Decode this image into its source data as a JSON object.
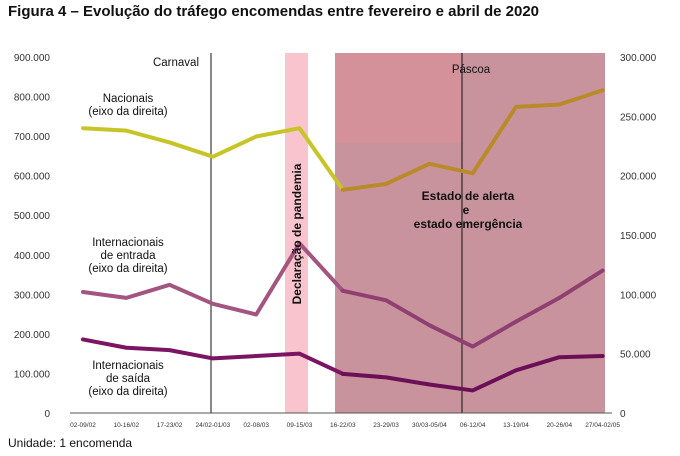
{
  "title": "Figura 4 – Evolução do tráfego encomendas entre fevereiro e abril de 2020",
  "footer": "Unidade: 1 encomenda",
  "chart_data": {
    "type": "line",
    "categories": [
      "02-09/02",
      "10-16/02",
      "17-23/02",
      "24/02-01/03",
      "02-08/03",
      "09-15/03",
      "16-22/03",
      "23-29/03",
      "30/03-05/04",
      "06-12/04",
      "13-19/04",
      "20-26/04",
      "27/04-02/05"
    ],
    "left_axis": {
      "ylim": [
        0,
        900000
      ],
      "ticks": [
        "0",
        "100.000",
        "200.000",
        "300.000",
        "400.000",
        "500.000",
        "600.000",
        "700.000",
        "800.000",
        "900.000"
      ]
    },
    "right_axis": {
      "ylim": [
        0,
        300000
      ],
      "ticks": [
        "0",
        "50.000",
        "100.000",
        "150.000",
        "200.000",
        "250.000",
        "300.000"
      ]
    },
    "series": [
      {
        "name": "Nacionais",
        "label_lines": [
          "Nacionais",
          "(eixo da direita)"
        ],
        "axis": "right",
        "values": [
          240000,
          238000,
          228000,
          216000,
          233000,
          240000,
          188000,
          193000,
          210000,
          202000,
          258000,
          260000,
          272000
        ]
      },
      {
        "name": "Internacionais de entrada",
        "label_lines": [
          "Internacionais",
          "de entrada",
          "(eixo da direita)"
        ],
        "axis": "right",
        "values": [
          102000,
          97000,
          108000,
          92000,
          83000,
          143000,
          103000,
          95000,
          74000,
          56000,
          77000,
          97000,
          120000
        ]
      },
      {
        "name": "Internacionais de saída",
        "label_lines": [
          "Internacionais",
          "de saída",
          "(eixo da direita)"
        ],
        "axis": "right",
        "values": [
          62000,
          55000,
          53000,
          46000,
          48000,
          50000,
          33000,
          30000,
          24000,
          19000,
          36000,
          47000,
          48000
        ]
      }
    ],
    "annotations": {
      "carnaval": "Carnaval",
      "pascoa": "Páscoa",
      "pandemic": "Declaração de pandemia",
      "alert_lines": [
        "Estado de alerta",
        "e",
        "estado emergência"
      ]
    },
    "colors": {
      "pandemic_band": "#f9c4ce",
      "alert_band": "#c9939d",
      "alert_band_top": "#d89097",
      "nacionais_before": "#c7c428",
      "nacionais_after": "#b98a2a",
      "entrada_before": "#a3547f",
      "entrada_after": "#8f3f70",
      "saida_before": "#7b1462",
      "saida_after": "#6b0f56"
    }
  }
}
